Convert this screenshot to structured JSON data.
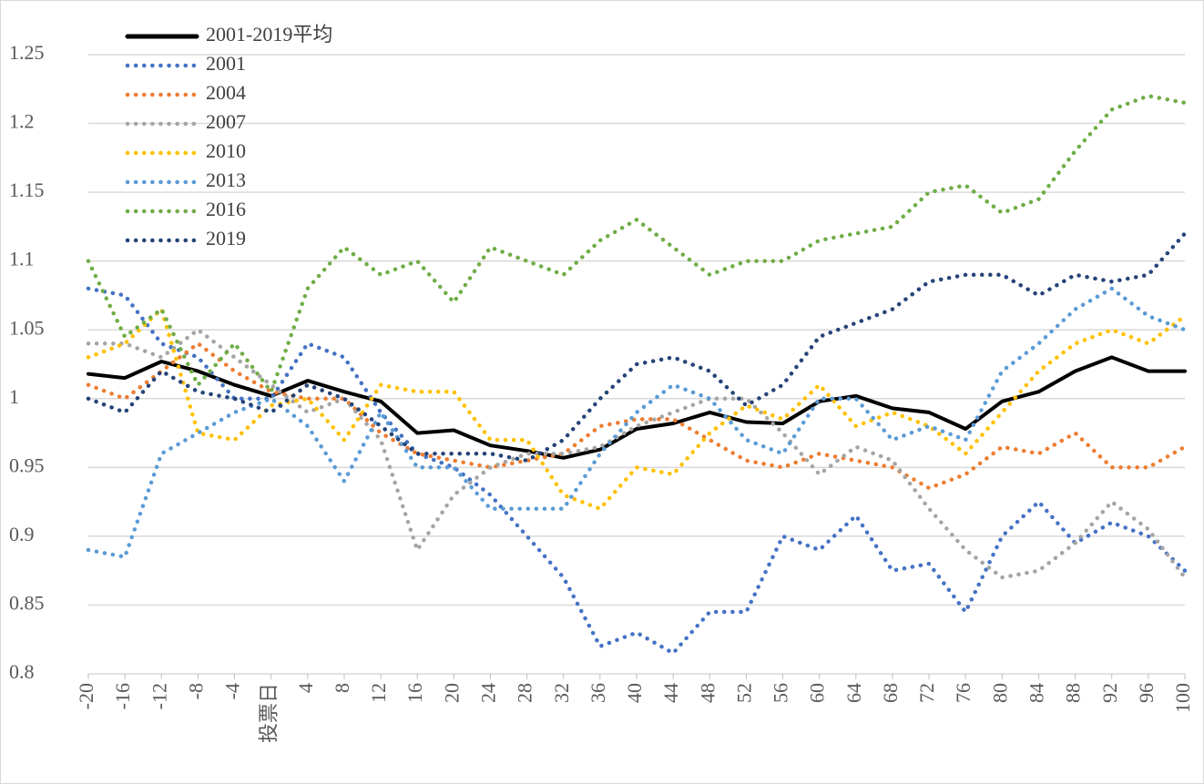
{
  "chart_data": {
    "type": "line",
    "x": [
      -20,
      -16,
      -12,
      -8,
      -4,
      0,
      4,
      8,
      12,
      16,
      20,
      24,
      28,
      32,
      36,
      40,
      44,
      48,
      52,
      56,
      60,
      64,
      68,
      72,
      76,
      80,
      84,
      88,
      92,
      96,
      100
    ],
    "xlim": [
      -20,
      100
    ],
    "xticks": [
      -20,
      -16,
      -12,
      -8,
      -4,
      {
        "value": 0,
        "label": "投票日"
      },
      4,
      8,
      12,
      16,
      20,
      24,
      28,
      32,
      36,
      40,
      44,
      48,
      52,
      56,
      60,
      64,
      68,
      72,
      76,
      80,
      84,
      88,
      92,
      96,
      100
    ],
    "ylim": [
      0.8,
      1.25
    ],
    "yticks": [
      0.8,
      0.85,
      0.9,
      0.95,
      1,
      1.05,
      1.1,
      1.15,
      1.2,
      1.25
    ],
    "grid": true,
    "legend": "upper left",
    "series": [
      {
        "name": "2001-2019平均",
        "color": "#000000",
        "style": "solid",
        "values": [
          1.018,
          1.015,
          1.027,
          1.02,
          1.01,
          1.002,
          1.013,
          1.005,
          0.998,
          0.975,
          0.977,
          0.966,
          0.962,
          0.957,
          0.963,
          0.978,
          0.982,
          0.99,
          0.983,
          0.982,
          0.998,
          1.002,
          0.993,
          0.99,
          0.978,
          0.998,
          1.005,
          1.02,
          1.03,
          1.02,
          1.02
        ]
      },
      {
        "name": "2001",
        "color": "#4472c4",
        "style": "dotted",
        "values": [
          1.08,
          1.075,
          1.04,
          1.03,
          1.0,
          1.0,
          1.04,
          1.03,
          0.99,
          0.96,
          0.95,
          0.93,
          0.9,
          0.87,
          0.82,
          0.83,
          0.815,
          0.845,
          0.845,
          0.9,
          0.89,
          0.915,
          0.875,
          0.88,
          0.845,
          0.9,
          0.925,
          0.895,
          0.91,
          0.9,
          0.875
        ]
      },
      {
        "name": "2004",
        "color": "#ed7d31",
        "style": "dotted",
        "values": [
          1.01,
          1.0,
          1.02,
          1.04,
          1.02,
          1.005,
          1.0,
          1.0,
          0.975,
          0.96,
          0.955,
          0.95,
          0.955,
          0.96,
          0.98,
          0.985,
          0.985,
          0.97,
          0.955,
          0.95,
          0.96,
          0.955,
          0.95,
          0.935,
          0.945,
          0.965,
          0.96,
          0.975,
          0.95,
          0.95,
          0.965
        ]
      },
      {
        "name": "2007",
        "color": "#a5a5a5",
        "style": "dotted",
        "values": [
          1.04,
          1.04,
          1.03,
          1.05,
          1.03,
          1.01,
          0.99,
          1.0,
          0.97,
          0.89,
          0.93,
          0.95,
          0.96,
          0.96,
          0.965,
          0.98,
          0.99,
          1.0,
          1.0,
          0.975,
          0.945,
          0.965,
          0.955,
          0.92,
          0.89,
          0.87,
          0.875,
          0.895,
          0.925,
          0.905,
          0.87
        ]
      },
      {
        "name": "2010",
        "color": "#ffc000",
        "style": "dotted",
        "values": [
          1.03,
          1.04,
          1.065,
          0.975,
          0.97,
          0.995,
          1.0,
          0.97,
          1.01,
          1.005,
          1.005,
          0.97,
          0.97,
          0.93,
          0.92,
          0.95,
          0.945,
          0.975,
          0.995,
          0.985,
          1.01,
          0.98,
          0.99,
          0.98,
          0.96,
          0.99,
          1.02,
          1.04,
          1.05,
          1.04,
          1.06
        ]
      },
      {
        "name": "2013",
        "color": "#5b9bd5",
        "style": "dotted",
        "values": [
          0.89,
          0.885,
          0.96,
          0.975,
          0.99,
          1.0,
          0.98,
          0.94,
          0.99,
          0.95,
          0.95,
          0.92,
          0.92,
          0.92,
          0.96,
          0.99,
          1.01,
          1.0,
          0.97,
          0.96,
          1.0,
          1.0,
          0.97,
          0.98,
          0.97,
          1.02,
          1.04,
          1.065,
          1.08,
          1.06,
          1.05
        ]
      },
      {
        "name": "2016",
        "color": "#70ad47",
        "style": "dotted",
        "values": [
          1.1,
          1.045,
          1.065,
          1.01,
          1.04,
          1.005,
          1.08,
          1.11,
          1.09,
          1.1,
          1.07,
          1.11,
          1.1,
          1.09,
          1.115,
          1.13,
          1.11,
          1.09,
          1.1,
          1.1,
          1.115,
          1.12,
          1.125,
          1.15,
          1.155,
          1.135,
          1.145,
          1.18,
          1.21,
          1.22,
          1.215
        ]
      },
      {
        "name": "2019",
        "color": "#264478",
        "style": "dotted",
        "values": [
          1.0,
          0.99,
          1.02,
          1.005,
          1.0,
          0.99,
          1.01,
          1.0,
          0.98,
          0.96,
          0.96,
          0.96,
          0.955,
          0.97,
          1.0,
          1.025,
          1.03,
          1.02,
          0.995,
          1.01,
          1.045,
          1.055,
          1.065,
          1.085,
          1.09,
          1.09,
          1.075,
          1.09,
          1.085,
          1.09,
          1.12
        ]
      }
    ]
  }
}
